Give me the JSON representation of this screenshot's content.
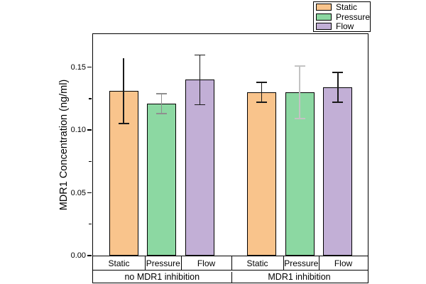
{
  "chart_data": {
    "type": "bar",
    "title": "",
    "ylabel": "MDR1 Concentration (ng/ml)",
    "xlabel": "",
    "groups": [
      "no MDR1 inhibition",
      "MDR1 inhibition"
    ],
    "categories": [
      "Static",
      "Pressure",
      "Flow"
    ],
    "series": [
      {
        "name": "Static",
        "color": "#F9C48C",
        "values": [
          0.131,
          0.13
        ],
        "errors": [
          0.026,
          0.008
        ],
        "error_colors": [
          "#1a1a1a",
          "#1a1a1a"
        ],
        "top_caps": [
          false,
          true
        ]
      },
      {
        "name": "Pressure",
        "color": "#8CD8A2",
        "values": [
          0.121,
          0.13
        ],
        "errors": [
          0.008,
          0.021
        ],
        "error_colors": [
          "#8f8f8f",
          "#c3c3c3"
        ],
        "top_caps": [
          true,
          true
        ]
      },
      {
        "name": "Flow",
        "color": "#C2AFD6",
        "values": [
          0.14,
          0.134
        ],
        "errors": [
          0.02,
          0.012
        ],
        "error_colors": [
          "#1a1a1a",
          "#1a1a1a"
        ],
        "top_caps": [
          true,
          true
        ]
      }
    ],
    "ylim": [
      0,
      0.177
    ],
    "ytick_labels": [
      "0.00",
      "0.05",
      "0.10",
      "0.15"
    ],
    "ytick_values": [
      0,
      0.05,
      0.1,
      0.15
    ],
    "minor_ytick_values": [
      0.025,
      0.075,
      0.125
    ],
    "grid": false,
    "legend_position": "top-right",
    "bar_border_color": "#000000",
    "background": "#ffffff"
  }
}
